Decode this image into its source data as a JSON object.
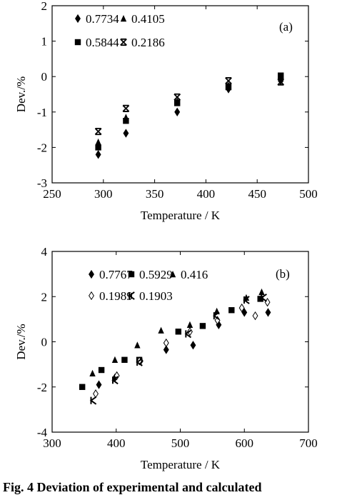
{
  "chart_data": [
    {
      "type": "scatter",
      "panel_label": "(a)",
      "xlabel": "Temperature / K",
      "ylabel": "Dev./%",
      "xlim": [
        250,
        500
      ],
      "ylim": [
        -3,
        2
      ],
      "xticks": [
        250,
        300,
        350,
        400,
        450,
        500
      ],
      "yticks": [
        -3,
        -2,
        -1,
        0,
        1,
        2
      ],
      "grid": false,
      "legend_placement": "top-left",
      "series": [
        {
          "name": "0.7734",
          "marker": "diamond",
          "points": [
            [
              295,
              -2.2
            ],
            [
              322,
              -1.6
            ],
            [
              372,
              -1.0
            ],
            [
              422,
              -0.35
            ],
            [
              473,
              -0.12
            ]
          ]
        },
        {
          "name": "0.4105",
          "marker": "triangle",
          "points": [
            [
              295,
              -1.85
            ],
            [
              322,
              -1.15
            ],
            [
              372,
              -0.7
            ],
            [
              422,
              -0.25
            ],
            [
              473,
              -0.05
            ]
          ]
        },
        {
          "name": "0.5844",
          "marker": "square",
          "points": [
            [
              295,
              -2.0
            ],
            [
              322,
              -1.25
            ],
            [
              372,
              -0.75
            ],
            [
              422,
              -0.3
            ],
            [
              473,
              0.03
            ]
          ]
        },
        {
          "name": "0.2186",
          "marker": "cross",
          "points": [
            [
              295,
              -1.55
            ],
            [
              322,
              -0.9
            ],
            [
              372,
              -0.58
            ],
            [
              422,
              -0.12
            ],
            [
              473,
              -0.15
            ]
          ]
        }
      ]
    },
    {
      "type": "scatter",
      "panel_label": "(b)",
      "xlabel": "Temperature / K",
      "ylabel": "Dev./%",
      "xlim": [
        300,
        700
      ],
      "ylim": [
        -4,
        4
      ],
      "xticks": [
        300,
        400,
        500,
        600,
        700
      ],
      "yticks": [
        -4,
        -2,
        0,
        2,
        4
      ],
      "grid": false,
      "legend_placement": "top-left",
      "series": [
        {
          "name": "0.7767",
          "marker": "diamond",
          "points": [
            [
              373,
              -1.9
            ],
            [
              398,
              -1.6
            ],
            [
              438,
              -0.85
            ],
            [
              478,
              -0.35
            ],
            [
              520,
              -0.15
            ],
            [
              560,
              0.75
            ],
            [
              600,
              1.3
            ],
            [
              637,
              1.3
            ]
          ]
        },
        {
          "name": "0.5929",
          "marker": "square",
          "points": [
            [
              347,
              -2.0
            ],
            [
              377,
              -1.25
            ],
            [
              413,
              -0.8
            ],
            [
              436,
              -0.8
            ],
            [
              497,
              0.45
            ],
            [
              535,
              0.7
            ],
            [
              580,
              1.4
            ],
            [
              625,
              1.9
            ]
          ]
        },
        {
          "name": "0.416",
          "marker": "triangle",
          "points": [
            [
              363,
              -1.4
            ],
            [
              398,
              -0.8
            ],
            [
              433,
              -0.15
            ],
            [
              470,
              0.5
            ],
            [
              515,
              0.75
            ],
            [
              557,
              1.35
            ],
            [
              603,
              1.95
            ],
            [
              627,
              2.2
            ]
          ]
        },
        {
          "name": "0.1989",
          "marker": "open-diamond",
          "points": [
            [
              368,
              -2.3
            ],
            [
              401,
              -1.5
            ],
            [
              436,
              -0.85
            ],
            [
              478,
              -0.05
            ],
            [
              515,
              0.45
            ],
            [
              558,
              0.95
            ],
            [
              596,
              1.5
            ],
            [
              617,
              1.15
            ],
            [
              636,
              1.75
            ]
          ]
        },
        {
          "name": "0.1903",
          "marker": "k",
          "points": [
            [
              364,
              -2.6
            ],
            [
              398,
              -1.7
            ],
            [
              436,
              -0.9
            ],
            [
              512,
              0.35
            ],
            [
              556,
              1.15
            ],
            [
              603,
              1.85
            ],
            [
              630,
              1.95
            ]
          ]
        }
      ]
    }
  ],
  "caption": "Fig. 4   Deviation of experimental and calculated"
}
